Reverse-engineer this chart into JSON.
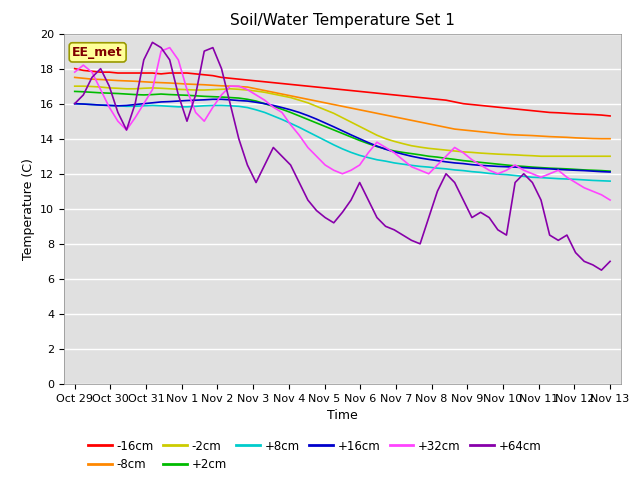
{
  "title": "Soil/Water Temperature Set 1",
  "xlabel": "Time",
  "ylabel": "Temperature (C)",
  "ylim": [
    0,
    20
  ],
  "yticks": [
    0,
    2,
    4,
    6,
    8,
    10,
    12,
    14,
    16,
    18,
    20
  ],
  "xtick_labels": [
    "Oct 29",
    "Oct 30",
    "Oct 31",
    "Nov 1",
    "Nov 2",
    "Nov 3",
    "Nov 4",
    "Nov 5",
    "Nov 6",
    "Nov 7",
    "Nov 8",
    "Nov 9",
    "Nov 10",
    "Nov 11",
    "Nov 12",
    "Nov 13"
  ],
  "bg_color": "#e0e0e0",
  "fig_bg": "#ffffff",
  "annotation_text": "EE_met",
  "annotation_color": "#800000",
  "annotation_bg": "#ffff99",
  "series_labels": [
    "-16cm",
    "-8cm",
    "-2cm",
    "+2cm",
    "+8cm",
    "+16cm",
    "+32cm",
    "+64cm"
  ],
  "series_colors": [
    "#ff0000",
    "#ff8800",
    "#cccc00",
    "#00bb00",
    "#00cccc",
    "#0000cc",
    "#ff44ff",
    "#8800aa"
  ],
  "n16cm": [
    18.0,
    17.9,
    17.85,
    17.8,
    17.8,
    17.75,
    17.75,
    17.75,
    17.75,
    17.75,
    17.7,
    17.75,
    17.75,
    17.75,
    17.7,
    17.65,
    17.6,
    17.5,
    17.45,
    17.4,
    17.35,
    17.3,
    17.25,
    17.2,
    17.15,
    17.1,
    17.05,
    17.0,
    16.95,
    16.9,
    16.85,
    16.8,
    16.75,
    16.7,
    16.65,
    16.6,
    16.55,
    16.5,
    16.45,
    16.4,
    16.35,
    16.3,
    16.25,
    16.2,
    16.1,
    16.0,
    15.95,
    15.9,
    15.85,
    15.8,
    15.75,
    15.7,
    15.65,
    15.6,
    15.55,
    15.5,
    15.48,
    15.45,
    15.42,
    15.4,
    15.38,
    15.35,
    15.3
  ],
  "n8cm": [
    17.5,
    17.45,
    17.4,
    17.38,
    17.35,
    17.32,
    17.3,
    17.28,
    17.25,
    17.22,
    17.2,
    17.18,
    17.15,
    17.12,
    17.1,
    17.08,
    17.05,
    17.02,
    17.0,
    16.98,
    16.95,
    16.85,
    16.75,
    16.65,
    16.55,
    16.45,
    16.35,
    16.25,
    16.15,
    16.05,
    15.95,
    15.85,
    15.75,
    15.65,
    15.55,
    15.45,
    15.35,
    15.25,
    15.15,
    15.05,
    14.95,
    14.85,
    14.75,
    14.65,
    14.55,
    14.5,
    14.45,
    14.4,
    14.35,
    14.3,
    14.25,
    14.22,
    14.2,
    14.18,
    14.15,
    14.12,
    14.1,
    14.08,
    14.05,
    14.03,
    14.01,
    14.0,
    14.0
  ],
  "n2cm": [
    17.0,
    17.0,
    16.98,
    16.95,
    16.9,
    16.88,
    16.85,
    16.85,
    16.88,
    16.9,
    16.88,
    16.85,
    16.82,
    16.8,
    16.78,
    16.78,
    16.8,
    16.82,
    16.85,
    16.82,
    16.78,
    16.72,
    16.65,
    16.55,
    16.45,
    16.35,
    16.2,
    16.05,
    15.85,
    15.65,
    15.45,
    15.2,
    14.95,
    14.7,
    14.45,
    14.2,
    14.0,
    13.85,
    13.72,
    13.6,
    13.52,
    13.45,
    13.4,
    13.35,
    13.3,
    13.25,
    13.22,
    13.18,
    13.15,
    13.12,
    13.1,
    13.08,
    13.05,
    13.03,
    13.0,
    13.0,
    13.0,
    13.0,
    13.0,
    13.0,
    13.0,
    13.0,
    13.0
  ],
  "p2cm": [
    16.7,
    16.68,
    16.65,
    16.62,
    16.6,
    16.58,
    16.55,
    16.52,
    16.5,
    16.52,
    16.55,
    16.52,
    16.5,
    16.48,
    16.45,
    16.42,
    16.4,
    16.38,
    16.35,
    16.32,
    16.25,
    16.15,
    16.0,
    15.85,
    15.68,
    15.5,
    15.3,
    15.1,
    14.9,
    14.7,
    14.5,
    14.3,
    14.1,
    13.9,
    13.72,
    13.55,
    13.42,
    13.3,
    13.22,
    13.15,
    13.08,
    13.0,
    12.95,
    12.88,
    12.82,
    12.75,
    12.7,
    12.65,
    12.6,
    12.55,
    12.5,
    12.45,
    12.42,
    12.38,
    12.35,
    12.32,
    12.3,
    12.28,
    12.25,
    12.22,
    12.2,
    12.18,
    12.15
  ],
  "p8cm": [
    16.0,
    15.98,
    15.95,
    15.92,
    15.9,
    15.88,
    15.85,
    15.85,
    15.88,
    15.9,
    15.88,
    15.85,
    15.82,
    15.82,
    15.85,
    15.88,
    15.9,
    15.9,
    15.88,
    15.85,
    15.78,
    15.65,
    15.5,
    15.3,
    15.1,
    14.88,
    14.65,
    14.4,
    14.15,
    13.9,
    13.65,
    13.42,
    13.22,
    13.05,
    12.92,
    12.8,
    12.72,
    12.62,
    12.55,
    12.48,
    12.42,
    12.38,
    12.32,
    12.28,
    12.22,
    12.18,
    12.12,
    12.08,
    12.02,
    11.98,
    11.95,
    11.9,
    11.85,
    11.8,
    11.78,
    11.75,
    11.72,
    11.7,
    11.68,
    11.65,
    11.62,
    11.6,
    11.58
  ],
  "p16cm": [
    16.0,
    15.98,
    15.95,
    15.92,
    15.9,
    15.88,
    15.9,
    15.95,
    16.0,
    16.05,
    16.1,
    16.12,
    16.15,
    16.18,
    16.2,
    16.22,
    16.25,
    16.25,
    16.22,
    16.18,
    16.15,
    16.08,
    16.0,
    15.9,
    15.78,
    15.65,
    15.5,
    15.32,
    15.12,
    14.9,
    14.68,
    14.45,
    14.22,
    14.0,
    13.78,
    13.58,
    13.4,
    13.25,
    13.12,
    13.0,
    12.9,
    12.82,
    12.75,
    12.68,
    12.62,
    12.58,
    12.52,
    12.48,
    12.45,
    12.42,
    12.4,
    12.38,
    12.35,
    12.32,
    12.3,
    12.28,
    12.25,
    12.22,
    12.2,
    12.18,
    12.15,
    12.12,
    12.1
  ],
  "p32cm": [
    17.8,
    18.2,
    17.8,
    16.8,
    15.8,
    15.0,
    14.5,
    15.2,
    16.0,
    16.8,
    19.0,
    19.2,
    18.5,
    16.8,
    15.5,
    15.0,
    15.8,
    16.5,
    17.0,
    17.0,
    16.8,
    16.5,
    16.2,
    15.8,
    15.5,
    14.8,
    14.2,
    13.5,
    13.0,
    12.5,
    12.2,
    12.0,
    12.2,
    12.5,
    13.2,
    13.8,
    13.5,
    13.2,
    12.8,
    12.4,
    12.2,
    12.0,
    12.5,
    13.0,
    13.5,
    13.2,
    12.8,
    12.5,
    12.2,
    12.0,
    12.2,
    12.5,
    12.2,
    12.0,
    11.8,
    12.0,
    12.2,
    11.8,
    11.5,
    11.2,
    11.0,
    10.8,
    10.5
  ],
  "p64cm": [
    16.0,
    16.5,
    17.5,
    18.0,
    17.0,
    15.5,
    14.5,
    16.0,
    18.5,
    19.5,
    19.2,
    18.5,
    16.5,
    15.0,
    16.5,
    19.0,
    19.2,
    18.0,
    16.0,
    14.0,
    12.5,
    11.5,
    12.5,
    13.5,
    13.0,
    12.5,
    11.5,
    10.5,
    9.9,
    9.5,
    9.2,
    9.8,
    10.5,
    11.5,
    10.5,
    9.5,
    9.0,
    8.8,
    8.5,
    8.2,
    8.0,
    9.5,
    11.0,
    12.0,
    11.5,
    10.5,
    9.5,
    9.8,
    9.5,
    8.8,
    8.5,
    11.5,
    12.0,
    11.5,
    10.5,
    8.5,
    8.2,
    8.5,
    7.5,
    7.0,
    6.8,
    6.5,
    7.0
  ]
}
